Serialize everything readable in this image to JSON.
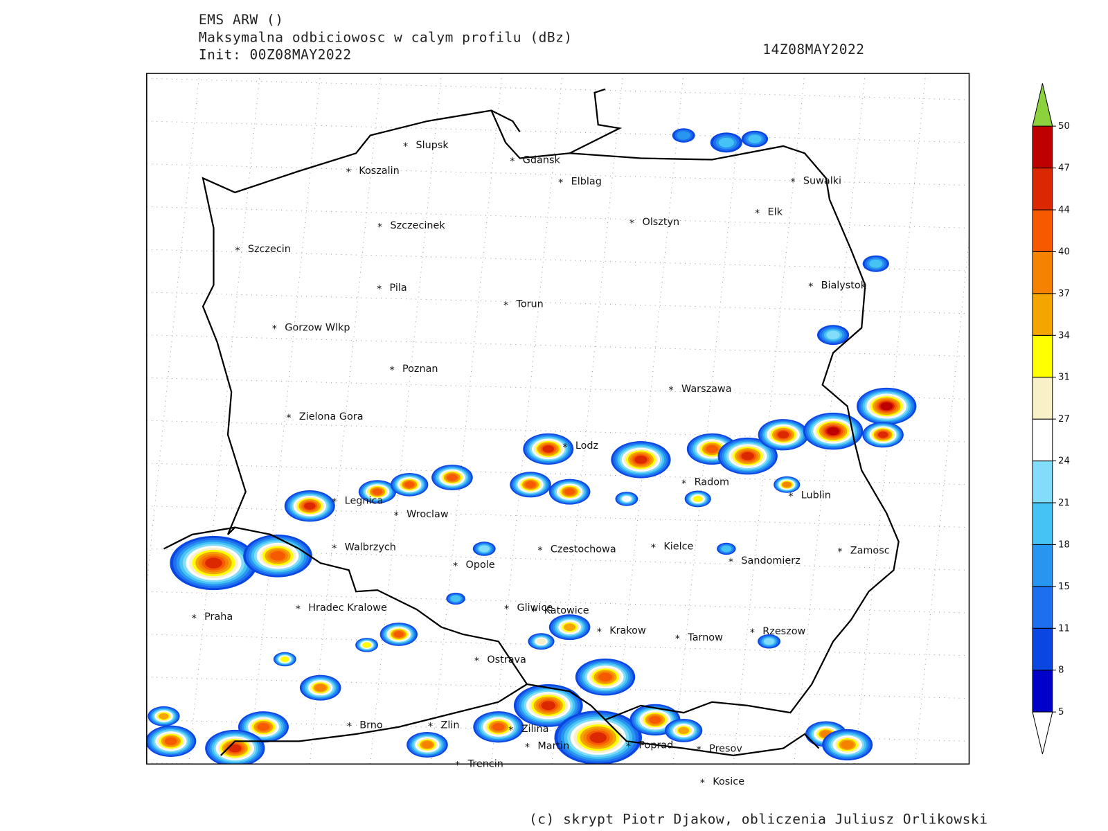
{
  "header": {
    "model": "EMS ARW ()",
    "description": "Maksymalna odbiciowosc w calym profilu (dBz)",
    "init": "Init: 00Z08MAY2022",
    "valid": "14Z08MAY2022"
  },
  "cities": [
    "Slupsk",
    "Koszalin",
    "Gdansk",
    "Elblag",
    "Suwalki",
    "Elk",
    "Olsztyn",
    "Szczecinek",
    "Szczecin",
    "Bialystok",
    "Pila",
    "Torun",
    "Gorzow Wlkp",
    "Poznan",
    "Warszawa",
    "Zielona Gora",
    "Lodz",
    "Radom",
    "Lublin",
    "Legnica",
    "Wroclaw",
    "Walbrzych",
    "Czestochowa",
    "Kielce",
    "Zamosc",
    "Opole",
    "Sandomierz",
    "Praha",
    "Hradec Kralowe",
    "Gliwice",
    "Katowice",
    "Krakow",
    "Tarnow",
    "Rzeszow",
    "Ostrava",
    "Brno",
    "Zlin",
    "Zilina",
    "Martin",
    "Poprad",
    "Presov",
    "Trencin",
    "Kosice"
  ],
  "colorbar": {
    "levels": [
      5,
      8,
      11,
      15,
      18,
      21,
      24,
      27,
      31,
      34,
      37,
      40,
      44,
      47,
      50
    ],
    "colors": [
      "#0000c8",
      "#0a46e1",
      "#1e6ef0",
      "#2896f0",
      "#46c3f5",
      "#82dcfa",
      "#ffffff",
      "#faf0c8",
      "#ffff00",
      "#f5a500",
      "#f58200",
      "#f55a00",
      "#dc2800",
      "#be0000"
    ],
    "under_color": "#ffffff",
    "over_color": "#8cd23c"
  },
  "footer": "(c) skrypt Piotr Djakow, obliczenia Juliusz Orlikowski"
}
